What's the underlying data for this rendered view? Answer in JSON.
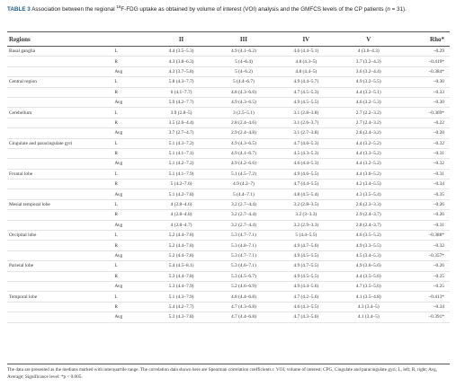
{
  "title": {
    "label": "TABLE 3",
    "text_a": "Association between the regional ",
    "sup": "18",
    "text_b": "F-FDG uptake as obtained by volume of interest (VOI) analysis and the GMFCS levels of the CP patients (",
    "n": "n",
    "text_c": " = 31)."
  },
  "table": {
    "header": [
      "Regions",
      "II",
      "III",
      "IV",
      "V",
      "Rho*"
    ],
    "groups": [
      {
        "region": "Basal ganglia",
        "rows": [
          [
            "L",
            "4.4 (3.5–5.3)",
            "4.9 (4.1–6.2)",
            "4.6 (4.4–5.1)",
            "4 (3.6–4.3)",
            "−0.29"
          ],
          [
            "R",
            "4.3 (3.8–6.3)",
            "5 (4–6.4)",
            "4.8 (4.3–5)",
            "3.7 (3.2–4.3)",
            "−0.419*"
          ],
          [
            "Avg",
            "4.3 (3.7–5.8)",
            "5 (4–6.2)",
            "4.8 (4.4–5)",
            "3.6 (3.2–4.4)",
            "−0.384*"
          ]
        ]
      },
      {
        "region": "Central region",
        "rows": [
          [
            "L",
            "5.8 (4.3–7.7)",
            "5 (4.4–6.7)",
            "4.9 (4.4–5.7)",
            "4.9 (3.2–5.5)",
            "−0.30"
          ],
          [
            "R",
            "6 (4.1–7.7)",
            "4.8 (4.3–6.6)",
            "4.7 (4.5–5.3)",
            "4.4 (3.2–5.1)",
            "−0.33"
          ],
          [
            "Avg",
            "5.9 (4.2–7.7)",
            "4.9 (4.3–6.5)",
            "4.9 (4.5–5.5)",
            "4.6 (3.2–5.3)",
            "−0.30"
          ]
        ]
      },
      {
        "region": "Cerebellum",
        "rows": [
          [
            "L",
            "3.9 (2.8–5)",
            "3 (2.5–5.1)",
            "3.1 (2.8–3.8)",
            "2.7 (2.2–3.2)",
            "−0.369*"
          ],
          [
            "R",
            "3.5 (2.6–4.4)",
            "2.8 (2.4–4.6)",
            "3.1 (2.6–3.7)",
            "2.7 (2.4–3.2)",
            "−0.22"
          ],
          [
            "Avg",
            "3.7 (2.7–4.7)",
            "2.9 (2.4–4.8)",
            "3.1 (2.7–3.8)",
            "2.8 (2.4–3.2)",
            "−0.28"
          ]
        ]
      },
      {
        "region": "Cingulate and paracingulate gyri",
        "rows": [
          [
            "L",
            "5.1 (4.3–7.2)",
            "4.9 (4.3–6.5)",
            "4.7 (4.6–5.3)",
            "4.4 (3.2–5.2)",
            "−0.32"
          ],
          [
            "R",
            "5.1 (4.1–7.1)",
            "4.9 (4.1–6.7)",
            "4.5 (4.3–5.3)",
            "4.4 (3.3–5.2)",
            "−0.31"
          ],
          [
            "Avg",
            "5.1 (4.2–7.2)",
            "4.9 (4.2–6.6)",
            "4.6 (4.4–5.3)",
            "4.4 (3.2–5.2)",
            "−0.32"
          ]
        ]
      },
      {
        "region": "Frontal lobe",
        "rows": [
          [
            "L",
            "5.1 (4.1–7.9)",
            "5.1 (4.5–7.2)",
            "4.9 (4.6–5.5)",
            "4.4 (3.6–5.2)",
            "−0.31"
          ],
          [
            "R",
            "5 (4.2–7.6)",
            "4.9 (4.2–7)",
            "4.7 (4.4–5.5)",
            "4.2 (3.4–5.5)",
            "−0.34"
          ],
          [
            "Avg",
            "5.1 (4.2–7.8)",
            "5 (4.4–7.1)",
            "4.8 (4.5–5.4)",
            "4.3 (3.5–5.4)",
            "−0.35"
          ]
        ]
      },
      {
        "region": "Mesial temporal lobe",
        "rows": [
          [
            "L",
            "4 (2.8–4.6)",
            "3.2 (2.7–4.4)",
            "3.2 (2.8–3.5)",
            "2.8 (2.3–3.3)",
            "−0.26"
          ],
          [
            "R",
            "4 (2.8–4.8)",
            "3.2 (2.7–4.4)",
            "3.2 (3–3.3)",
            "2.9 (2.4–3.7)",
            "−0.26"
          ],
          [
            "Avg",
            "4 (2.8–4.7)",
            "3.2 (2.7–4.4)",
            "3.2 (2.9–3.3)",
            "2.8 (2.4–3.7)",
            "−0.31"
          ]
        ]
      },
      {
        "region": "Occipital lobe",
        "rows": [
          [
            "L",
            "5.2 (4.4–7.8)",
            "5.3 (4.7–7.1)",
            "5 (4.4–5.5)",
            "4.6 (3.5–5.2)",
            "−0.388*"
          ],
          [
            "R",
            "5.2 (4.4–7.8)",
            "5.3 (4.8–7.1)",
            "4.9 (4.7–5.6)",
            "4.9 (3.3–5.5)",
            "−0.32"
          ],
          [
            "Avg",
            "5.2 (4.4–7.8)",
            "5.3 (4.7–7.1)",
            "4.9 (4.5–5.5)",
            "4.5 (3.4–5.3)",
            "−0.357*"
          ]
        ]
      },
      {
        "region": "Parietal lobe",
        "rows": [
          [
            "L",
            "5.4 (4.5–8.1)",
            "5.3 (4.6–7.1)",
            "4.9 (4.7–5.5)",
            "4.9 (3.6–5.6)",
            "−0.26"
          ],
          [
            "R",
            "5.3 (4.4–7.8)",
            "5.3 (4.5–6.7)",
            "4.9 (4.5–5.5)",
            "4.4 (3.5–5.6)",
            "−0.25"
          ],
          [
            "Avg",
            "5.3 (4.4–7.9)",
            "5.2 (4.6–6.9)",
            "4.9 (4.4–5.6)",
            "4.7 (3.5–5.6)",
            "−0.25"
          ]
        ]
      },
      {
        "region": "Temporal lobe",
        "rows": [
          [
            "L",
            "5.1 (4.3–7.9)",
            "4.8 (4.4–6.8)",
            "4.7 (4.2–5.6)",
            "4.1 (3.5–4.8)",
            "−0.413*"
          ],
          [
            "R",
            "5.4 (4.2–7.7)",
            "4.7 (4.3–6.8)",
            "4.6 (4.3–5.5)",
            "4.3 (3.4–5)",
            "−0.34"
          ],
          [
            "Avg",
            "5.3 (4.3–7.8)",
            "4.7 (4.4–6.8)",
            "4.7 (4.3–5.6)",
            "4.1 (3.4–5)",
            "−0.391*"
          ]
        ]
      }
    ]
  },
  "footnote": "The data are presented as the medians marked with interquartile range. The correlation data shown here are Spearman correlation coefficients r. VOI, volume of interest; CPG, Cingulate and paracingulate gyri; L, left; R, right; Avg, Average; Significance level: *p < 0.005."
}
